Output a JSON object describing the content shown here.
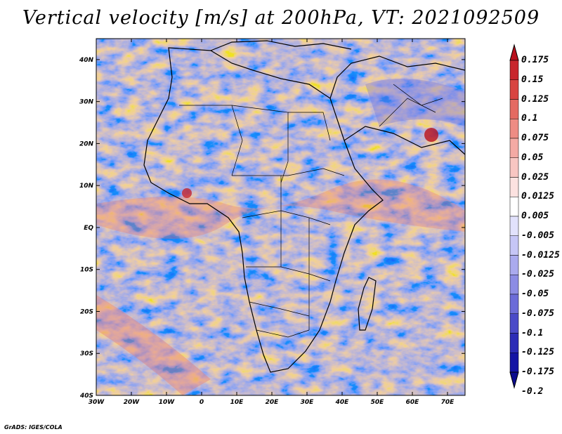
{
  "title": "Vertical velocity [m/s] at 200hPa, VT: 2021092509",
  "credit": "GrADS: IGES/COLA",
  "map": {
    "lat_labels": [
      "40N",
      "30N",
      "20N",
      "10N",
      "EQ",
      "10S",
      "20S",
      "30S",
      "40S"
    ],
    "lat_values": [
      40,
      30,
      20,
      10,
      0,
      -10,
      -20,
      -30,
      -40
    ],
    "lon_labels": [
      "30W",
      "20W",
      "10W",
      "0",
      "10E",
      "20E",
      "30E",
      "40E",
      "50E",
      "60E",
      "70E"
    ],
    "lon_values": [
      -30,
      -20,
      -10,
      0,
      10,
      20,
      30,
      40,
      50,
      60,
      70
    ],
    "lon_range": [
      -30,
      75
    ],
    "lat_range": [
      -40,
      45
    ]
  },
  "colorbar": {
    "levels": [
      "0.175",
      "0.15",
      "0.125",
      "0.1",
      "0.075",
      "0.05",
      "0.025",
      "0.0125",
      "0.005",
      "-0.005",
      "-0.0125",
      "-0.025",
      "-0.05",
      "-0.075",
      "-0.1",
      "-0.125",
      "-0.175",
      "-0.2"
    ],
    "colors": [
      "#b8101c",
      "#c8262c",
      "#d84440",
      "#e46a62",
      "#ee8c84",
      "#f4aaa4",
      "#f8c6c2",
      "#fce2e0",
      "#ffffff",
      "#e2e2fc",
      "#c6c6f6",
      "#aaaaee",
      "#8c8ce4",
      "#6c6cd8",
      "#4a4ac8",
      "#2c2cb6",
      "#1414a4",
      "#0c0c8e"
    ]
  }
}
